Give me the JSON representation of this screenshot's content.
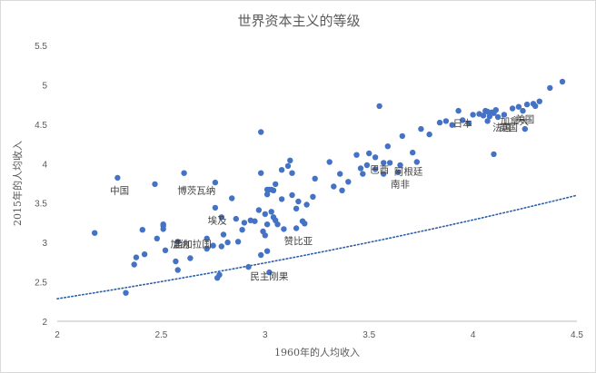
{
  "chart_data": {
    "type": "scatter",
    "title": "世界资本主义的等级",
    "xlabel": "1960年的人均收入",
    "ylabel": "2015年的人均收入",
    "xlim": [
      2,
      4.5
    ],
    "ylim": [
      2,
      5.5
    ],
    "x_ticks": [
      "2",
      "2.5",
      "3",
      "3.5",
      "4",
      "4.5"
    ],
    "y_ticks": [
      "2",
      "2.5",
      "3",
      "3.5",
      "4",
      "4.5",
      "5",
      "5.5"
    ],
    "grid": false,
    "trendline": {
      "type": "exponential",
      "a": 1.59,
      "b": 0.1815,
      "style": "dotted"
    },
    "colors": {
      "points": "#4472c4",
      "trend": "#2e5fa8"
    },
    "annotations": [
      {
        "text": "中国",
        "x": 2.3,
        "y": 3.62
      },
      {
        "text": "博茨瓦纳",
        "x": 2.67,
        "y": 3.62
      },
      {
        "text": "埃及",
        "x": 2.77,
        "y": 3.24
      },
      {
        "text": "加纳",
        "x": 2.59,
        "y": 2.94
      },
      {
        "text": "孟加拉国",
        "x": 2.65,
        "y": 2.94
      },
      {
        "text": "赞比亚",
        "x": 3.16,
        "y": 2.98
      },
      {
        "text": "民主刚果",
        "x": 3.02,
        "y": 2.53
      },
      {
        "text": "巴西",
        "x": 3.55,
        "y": 3.88
      },
      {
        "text": "阿根廷",
        "x": 3.69,
        "y": 3.86
      },
      {
        "text": "南非",
        "x": 3.65,
        "y": 3.7
      },
      {
        "text": "日本",
        "x": 3.95,
        "y": 4.47
      },
      {
        "text": "法国",
        "x": 4.14,
        "y": 4.42
      },
      {
        "text": "英国",
        "x": 4.17,
        "y": 4.42
      },
      {
        "text": "加拿大",
        "x": 4.2,
        "y": 4.5
      },
      {
        "text": "美国",
        "x": 4.25,
        "y": 4.52
      }
    ],
    "series": [
      {
        "points": [
          [
            2.18,
            3.12
          ],
          [
            2.29,
            3.82
          ],
          [
            2.33,
            2.36
          ],
          [
            2.37,
            2.72
          ],
          [
            2.38,
            2.81
          ],
          [
            2.41,
            3.16
          ],
          [
            2.42,
            2.85
          ],
          [
            2.47,
            3.74
          ],
          [
            2.48,
            3.05
          ],
          [
            2.51,
            3.17
          ],
          [
            2.51,
            3.21
          ],
          [
            2.51,
            3.23
          ],
          [
            2.52,
            2.9
          ],
          [
            2.57,
            2.76
          ],
          [
            2.58,
            2.65
          ],
          [
            2.58,
            3.01
          ],
          [
            2.61,
            3.88
          ],
          [
            2.64,
            2.8
          ],
          [
            2.72,
            2.92
          ],
          [
            2.72,
            3.05
          ],
          [
            2.75,
            2.96
          ],
          [
            2.76,
            3.76
          ],
          [
            2.76,
            3.44
          ],
          [
            2.77,
            2.55
          ],
          [
            2.78,
            2.59
          ],
          [
            2.79,
            2.95
          ],
          [
            2.79,
            3.32
          ],
          [
            2.8,
            3.1
          ],
          [
            2.82,
            3.0
          ],
          [
            2.84,
            3.56
          ],
          [
            2.86,
            3.3
          ],
          [
            2.87,
            3.01
          ],
          [
            2.89,
            3.16
          ],
          [
            2.9,
            3.25
          ],
          [
            2.92,
            2.69
          ],
          [
            2.93,
            3.28
          ],
          [
            2.95,
            3.27
          ],
          [
            2.97,
            3.41
          ],
          [
            2.98,
            2.84
          ],
          [
            2.98,
            4.4
          ],
          [
            2.98,
            3.88
          ],
          [
            2.99,
            3.14
          ],
          [
            3.0,
            3.09
          ],
          [
            3.0,
            3.36
          ],
          [
            3.01,
            3.67
          ],
          [
            3.01,
            3.61
          ],
          [
            3.01,
            2.89
          ],
          [
            3.01,
            3.23
          ],
          [
            3.02,
            3.67
          ],
          [
            3.02,
            2.62
          ],
          [
            3.03,
            3.39
          ],
          [
            3.03,
            3.67
          ],
          [
            3.04,
            3.32
          ],
          [
            3.04,
            3.66
          ],
          [
            3.05,
            3.74
          ],
          [
            3.05,
            3.28
          ],
          [
            3.06,
            3.23
          ],
          [
            3.08,
            3.92
          ],
          [
            3.08,
            3.55
          ],
          [
            3.09,
            3.17
          ],
          [
            3.11,
            3.97
          ],
          [
            3.12,
            4.04
          ],
          [
            3.13,
            3.88
          ],
          [
            3.13,
            3.6
          ],
          [
            3.15,
            3.18
          ],
          [
            3.15,
            3.43
          ],
          [
            3.16,
            3.52
          ],
          [
            3.18,
            3.27
          ],
          [
            3.19,
            3.24
          ],
          [
            3.2,
            3.48
          ],
          [
            3.23,
            3.58
          ],
          [
            3.24,
            3.81
          ],
          [
            3.31,
            4.02
          ],
          [
            3.33,
            3.71
          ],
          [
            3.36,
            3.87
          ],
          [
            3.37,
            3.66
          ],
          [
            3.4,
            3.77
          ],
          [
            3.44,
            4.11
          ],
          [
            3.46,
            3.94
          ],
          [
            3.47,
            3.87
          ],
          [
            3.49,
            3.98
          ],
          [
            3.5,
            4.13
          ],
          [
            3.53,
            3.93
          ],
          [
            3.53,
            4.08
          ],
          [
            3.55,
            4.73
          ],
          [
            3.57,
            3.87
          ],
          [
            3.57,
            4.01
          ],
          [
            3.59,
            4.22
          ],
          [
            3.6,
            4.01
          ],
          [
            3.64,
            3.89
          ],
          [
            3.65,
            3.98
          ],
          [
            3.66,
            4.35
          ],
          [
            3.71,
            4.14
          ],
          [
            3.73,
            4.02
          ],
          [
            3.75,
            4.44
          ],
          [
            3.79,
            4.37
          ],
          [
            3.84,
            4.52
          ],
          [
            3.87,
            4.54
          ],
          [
            3.9,
            4.49
          ],
          [
            3.93,
            4.67
          ],
          [
            3.95,
            4.55
          ],
          [
            3.98,
            4.51
          ],
          [
            4.0,
            4.62
          ],
          [
            4.03,
            4.63
          ],
          [
            4.05,
            4.61
          ],
          [
            4.06,
            4.67
          ],
          [
            4.07,
            4.66
          ],
          [
            4.07,
            4.54
          ],
          [
            4.08,
            4.6
          ],
          [
            4.09,
            4.65
          ],
          [
            4.1,
            4.12
          ],
          [
            4.1,
            4.64
          ],
          [
            4.11,
            4.68
          ],
          [
            4.12,
            4.59
          ],
          [
            4.15,
            4.62
          ],
          [
            4.19,
            4.7
          ],
          [
            4.22,
            4.72
          ],
          [
            4.24,
            4.67
          ],
          [
            4.25,
            4.44
          ],
          [
            4.26,
            4.75
          ],
          [
            4.29,
            4.76
          ],
          [
            4.3,
            4.73
          ],
          [
            4.32,
            4.79
          ],
          [
            4.37,
            4.96
          ],
          [
            4.43,
            5.04
          ]
        ]
      }
    ]
  }
}
